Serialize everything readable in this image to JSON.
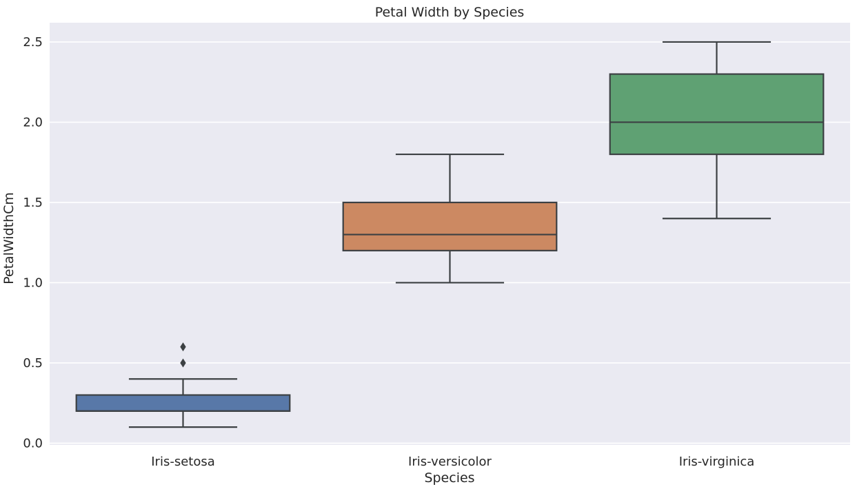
{
  "chart_data": {
    "type": "box",
    "title": "Petal Width by Species",
    "xlabel": "Species",
    "ylabel": "PetalWidthCm",
    "categories": [
      "Iris-setosa",
      "Iris-versicolor",
      "Iris-virginica"
    ],
    "series": [
      {
        "name": "Iris-setosa",
        "whisker_low": 0.1,
        "q1": 0.2,
        "median": 0.2,
        "q3": 0.3,
        "whisker_high": 0.4,
        "outliers": [
          0.5,
          0.6
        ],
        "color": "#5878A8"
      },
      {
        "name": "Iris-versicolor",
        "whisker_low": 1.0,
        "q1": 1.2,
        "median": 1.3,
        "q3": 1.5,
        "whisker_high": 1.8,
        "outliers": [],
        "color": "#CC8962"
      },
      {
        "name": "Iris-virginica",
        "whisker_low": 1.4,
        "q1": 1.8,
        "median": 2.0,
        "q3": 2.3,
        "whisker_high": 2.5,
        "outliers": [],
        "color": "#5FA173"
      }
    ],
    "yticks": [
      0.0,
      0.5,
      1.0,
      1.5,
      2.0,
      2.5
    ],
    "ytick_labels": [
      "0.0",
      "0.5",
      "1.0",
      "1.5",
      "2.0",
      "2.5"
    ],
    "ylim": [
      -0.011,
      2.62
    ],
    "grid": {
      "horizontal": true,
      "vertical": false
    },
    "legend": "none",
    "colors": {
      "figure_bg": "#FFFFFF",
      "plot_bg": "#EAEAF2",
      "grid": "#FFFFFF",
      "edge": "#3C4043",
      "text": "#262626"
    }
  }
}
